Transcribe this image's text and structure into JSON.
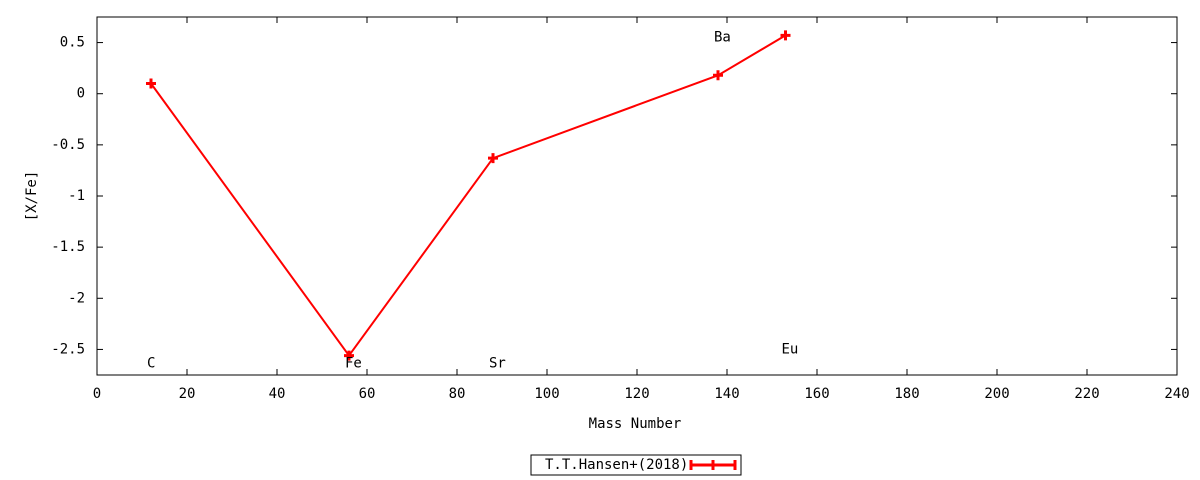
{
  "chart_data": {
    "type": "line",
    "xlabel": "Mass Number",
    "ylabel": "[X/Fe]",
    "x": [
      12,
      56,
      88,
      138,
      153
    ],
    "series": [
      {
        "name": "T.T.Hansen+(2018)",
        "color": "#ff0000",
        "values": [
          0.1,
          -2.56,
          -0.63,
          0.18,
          0.57
        ]
      }
    ],
    "xlim": [
      0,
      240
    ],
    "xticks": [
      0,
      20,
      40,
      60,
      80,
      100,
      120,
      140,
      160,
      180,
      200,
      220,
      240
    ],
    "ylim": [
      -2.75,
      0.75
    ],
    "yticks": [
      -2.5,
      -2,
      -1.5,
      -1,
      -0.5,
      0,
      0.5
    ],
    "annotations": [
      {
        "text": "C",
        "x": 12,
        "y": -2.64
      },
      {
        "text": "Fe",
        "x": 56,
        "y": -2.64
      },
      {
        "text": "Sr",
        "x": 88,
        "y": -2.64
      },
      {
        "text": "Ba",
        "x": 138,
        "y": 0.55
      },
      {
        "text": "Eu",
        "x": 153,
        "y": -2.5
      }
    ],
    "grid": false,
    "legend": "bottom"
  }
}
